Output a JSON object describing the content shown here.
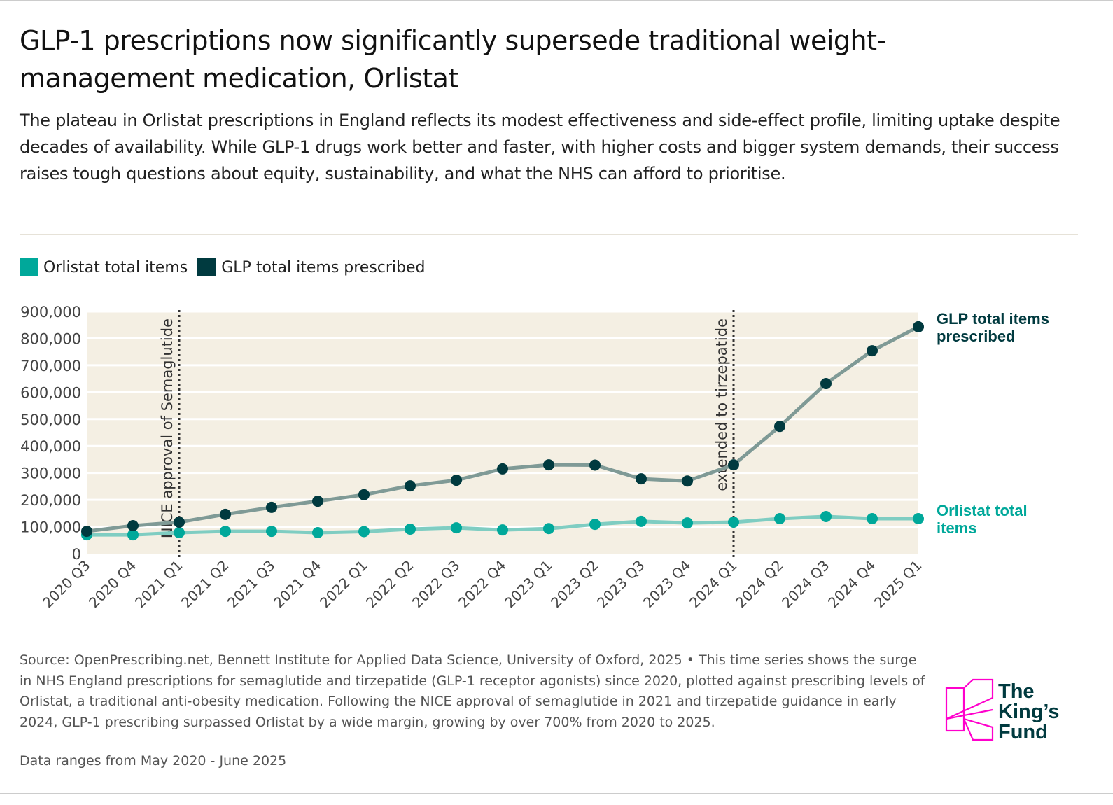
{
  "title": "GLP-1 prescriptions now significantly supersede traditional weight-management medication, Orlistat",
  "subtitle": "The plateau in Orlistat prescriptions in England reflects its modest effectiveness and side-effect profile, limiting uptake despite decades of availability. While GLP-1 drugs work better and faster, with higher costs and bigger system demands, their success raises tough questions about equity, sustainability, and what the NHS can afford to prioritise.",
  "footnote": "Source: OpenPrescribing.net, Bennett Institute for Applied Data Science, University of Oxford, 2025 • This time series shows the surge in NHS England prescriptions for semaglutide and tirzepatide (GLP-1 receptor agonists) since 2020, plotted against prescribing levels of Orlistat, a traditional anti-obesity medication. Following the NICE approval of semaglutide in 2021 and tirzepatide guidance in early 2024, GLP-1 prescribing surpassed Orlistat by a wide margin, growing by over 700% from 2020 to 2025.",
  "data_range": "Data ranges from May 2020 - June 2025",
  "logo": {
    "text": [
      "The",
      "King's",
      "Fund"
    ],
    "color": "#ff00cc",
    "text_color": "#003a3f"
  },
  "chart_data": {
    "type": "line",
    "categories": [
      "2020 Q3",
      "2020 Q4",
      "2021 Q1",
      "2021 Q2",
      "2021 Q3",
      "2021 Q4",
      "2022 Q1",
      "2022 Q2",
      "2022 Q3",
      "2022 Q4",
      "2023 Q1",
      "2023 Q2",
      "2023 Q3",
      "2023 Q4",
      "2024 Q1",
      "2024 Q2",
      "2024 Q3",
      "2024 Q4",
      "2025 Q1"
    ],
    "ylim": [
      0,
      900000
    ],
    "yticks": [
      0,
      100000,
      200000,
      300000,
      400000,
      500000,
      600000,
      700000,
      800000,
      900000
    ],
    "ytick_labels": [
      "0",
      "100,000",
      "200,000",
      "300,000",
      "400,000",
      "500,000",
      "600,000",
      "700,000",
      "800,000",
      "900,000"
    ],
    "grid": true,
    "legend_position": "top-left",
    "series": [
      {
        "name": "Orlistat total items",
        "end_label": "Orlistat total items",
        "color": "#00a89a",
        "line_color": "#7fcdc2",
        "values": [
          70000,
          70000,
          78000,
          83000,
          83000,
          78000,
          82000,
          91000,
          96000,
          88000,
          93000,
          109000,
          120000,
          114000,
          117000,
          130000,
          138000,
          130000,
          130000
        ]
      },
      {
        "name": "GLP total items prescribed",
        "end_label": "GLP total items prescribed",
        "color": "#003a3f",
        "line_color": "#7f9a96",
        "values": [
          83000,
          104000,
          117000,
          146000,
          172000,
          195000,
          219000,
          252000,
          273000,
          315000,
          330000,
          329000,
          278000,
          270000,
          330000,
          473000,
          632000,
          754000,
          843000
        ]
      }
    ],
    "annotations": [
      {
        "x": "2021 Q1",
        "text": "NICE approval of Semaglutide"
      },
      {
        "x": "2024 Q1",
        "text": "extended to tirzepatide"
      }
    ],
    "plot_background": "#f4efe3"
  }
}
